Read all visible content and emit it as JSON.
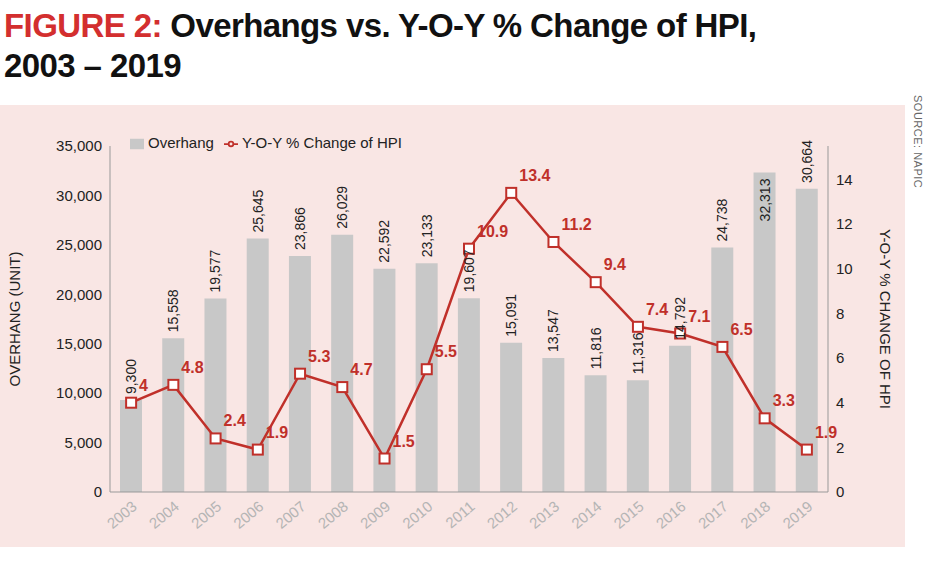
{
  "chart_data": {
    "type": "bar",
    "title": "FIGURE 2: Overhangs vs. Y-O-Y % Change of HPI, 2003 – 2019",
    "source": "SOURCE: NAPIC",
    "y_label": "OVERHANG (UNIT)",
    "y2_label": "Y-O-Y % CHANGE OF HPI",
    "categories": [
      "2003",
      "2004",
      "2005",
      "2006",
      "2007",
      "2008",
      "2009",
      "2010",
      "2011",
      "2012",
      "2013",
      "2014",
      "2015",
      "2016",
      "2017",
      "2018",
      "2019"
    ],
    "series": [
      {
        "name": "Overhang",
        "type": "bar",
        "color": "#c8c8c8",
        "values": [
          9300,
          15558,
          19577,
          25645,
          23866,
          26029,
          22592,
          23133,
          19607,
          15091,
          13547,
          11816,
          11316,
          14792,
          24738,
          32313,
          30664
        ],
        "value_labels": [
          "9,300",
          "15,558",
          "19,577",
          "25,645",
          "23,866",
          "26,029",
          "22,592",
          "23,133",
          "19,607",
          "15,091",
          "13,547",
          "11,816",
          "11,316",
          "14,792",
          "24,738",
          "32,313",
          "30,664"
        ],
        "data_labels": true
      },
      {
        "name": "Y-O-Y % Change of HPI",
        "type": "line",
        "axis": "y2",
        "color": "#c0302a",
        "marker": "square",
        "values": [
          4,
          4.8,
          2.4,
          1.9,
          5.3,
          4.7,
          1.5,
          5.5,
          10.9,
          13.4,
          11.2,
          9.4,
          7.4,
          7.1,
          6.5,
          3.3,
          1.9
        ],
        "data_labels": true
      }
    ],
    "ylim": [
      0,
      35000
    ],
    "yticks": [
      0,
      {
        "value": 5000,
        "label": "5,000"
      },
      {
        "value": 10000,
        "label": "10,000"
      },
      {
        "value": 15000,
        "label": "15,000"
      },
      {
        "value": 20000,
        "label": "20,000"
      },
      {
        "value": 25000,
        "label": "25,000"
      },
      {
        "value": 30000,
        "label": "30,000"
      },
      {
        "value": 35000,
        "label": "35,000"
      }
    ],
    "y2lim": [
      0,
      15.5
    ],
    "y2ticks": [
      0,
      2,
      4,
      6,
      8,
      10,
      12,
      14
    ],
    "legend": "top-left",
    "grid": false
  }
}
